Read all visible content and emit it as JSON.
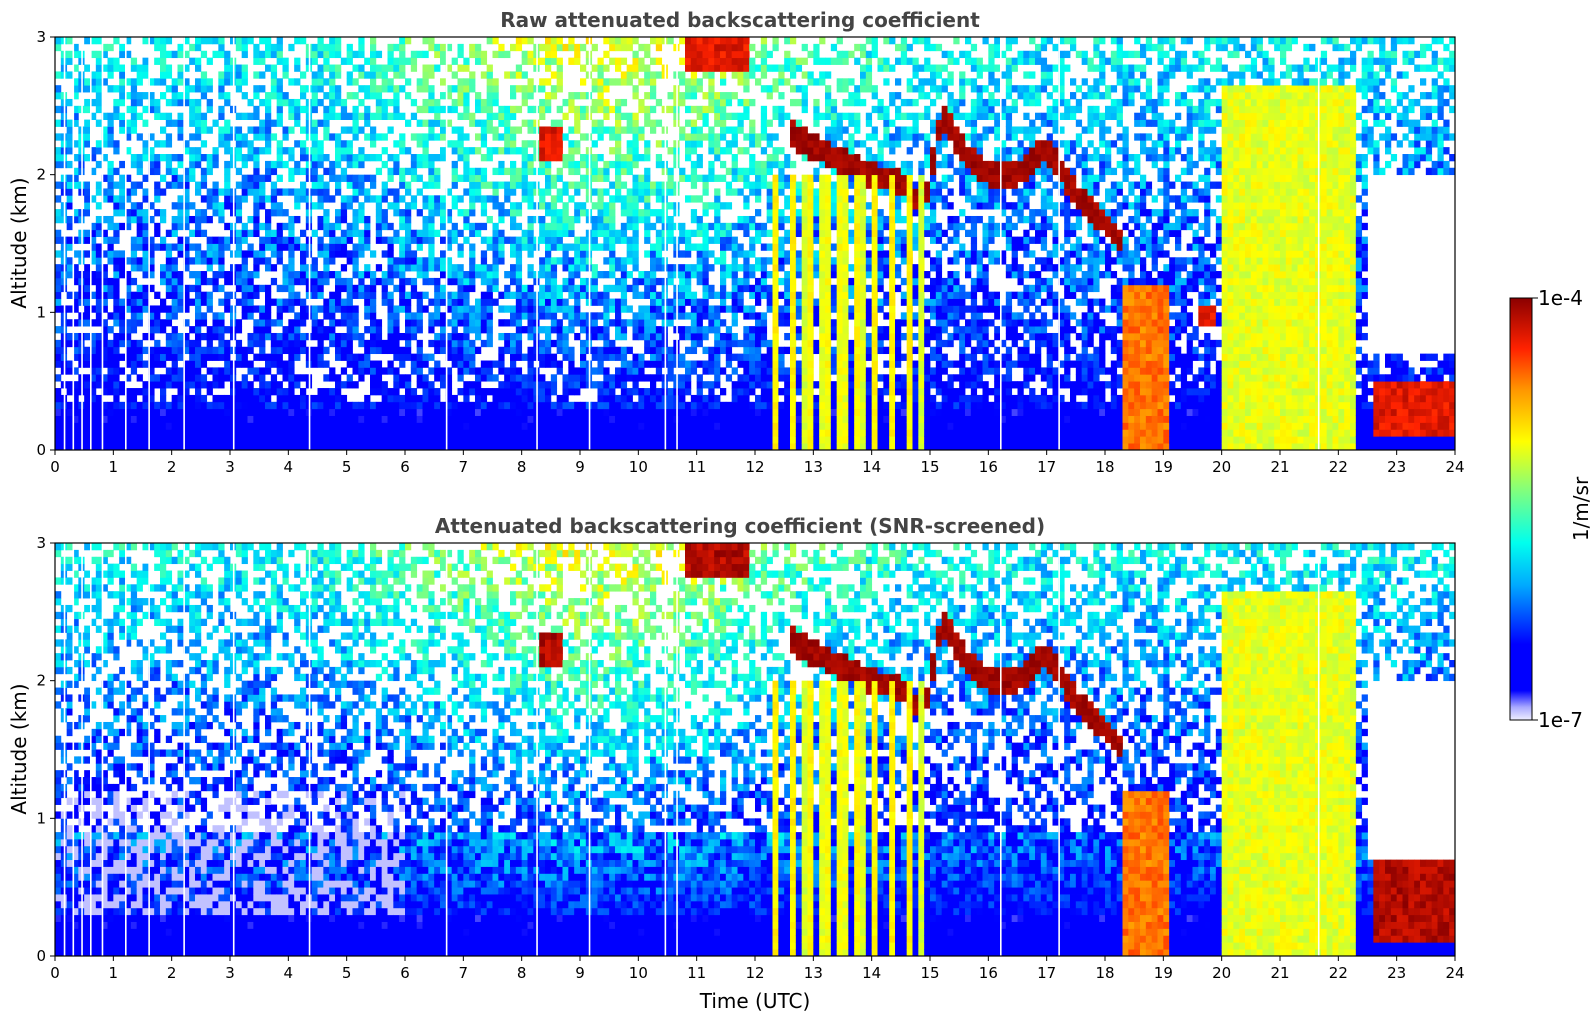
{
  "chart_data": [
    {
      "type": "heatmap",
      "title": "Raw attenuated backscattering coefficient",
      "xlabel": "",
      "ylabel": "Altitude (km)",
      "xlim": [
        0,
        24
      ],
      "ylim": [
        0,
        3
      ],
      "xticks": [
        "0",
        "1",
        "2",
        "3",
        "4",
        "5",
        "6",
        "7",
        "8",
        "9",
        "10",
        "11",
        "12",
        "13",
        "14",
        "15",
        "16",
        "17",
        "18",
        "19",
        "20",
        "21",
        "22",
        "23",
        "24"
      ],
      "yticks": [
        "0",
        "1",
        "2",
        "3"
      ],
      "colorscale": "jet (log)",
      "clim": [
        "1e-7",
        "1e-4"
      ],
      "features": [
        {
          "kind": "cloud_layer",
          "t": [
            8.3,
            8.7
          ],
          "alt": [
            2.1,
            2.35
          ],
          "level": 0.95
        },
        {
          "kind": "cloud_layer",
          "t": [
            10.8,
            11.9
          ],
          "alt": [
            2.75,
            3.0
          ],
          "level": 0.95
        },
        {
          "kind": "cloud_layer_profile",
          "t": [
            12.6,
            13.0,
            13.5,
            14.0,
            14.5,
            14.9,
            15.2,
            15.6,
            16.0,
            16.5,
            17.0,
            17.5,
            18.0,
            18.3
          ],
          "alt": [
            2.3,
            2.2,
            2.1,
            2.0,
            1.95,
            1.75,
            2.45,
            2.15,
            2.0,
            2.0,
            2.2,
            1.85,
            1.65,
            1.5
          ],
          "level": 1.0
        },
        {
          "kind": "precipitation",
          "t": [
            18.3,
            19.1
          ],
          "alt": [
            0.0,
            1.2
          ],
          "level": 0.85
        },
        {
          "kind": "cloud_layer",
          "t": [
            19.6,
            19.9
          ],
          "alt": [
            0.9,
            1.05
          ],
          "level": 0.95
        },
        {
          "kind": "fallstreak",
          "t": [
            12.3,
            14.9
          ],
          "alt": [
            0.0,
            2.0
          ],
          "level": 0.6
        },
        {
          "kind": "dense_aerosol",
          "t": [
            20.0,
            22.3
          ],
          "alt": [
            0.0,
            2.65
          ],
          "level": 0.68
        },
        {
          "kind": "low_cloud",
          "t": [
            22.6,
            24.0
          ],
          "alt": [
            0.1,
            0.5
          ],
          "level": 0.95
        }
      ]
    },
    {
      "type": "heatmap",
      "title": "Attenuated backscattering coefficient (SNR-screened)",
      "xlabel": "Time (UTC)",
      "ylabel": "Altitude (km)",
      "xlim": [
        0,
        24
      ],
      "ylim": [
        0,
        3
      ],
      "xticks": [
        "0",
        "1",
        "2",
        "3",
        "4",
        "5",
        "6",
        "7",
        "8",
        "9",
        "10",
        "11",
        "12",
        "13",
        "14",
        "15",
        "16",
        "17",
        "18",
        "19",
        "20",
        "21",
        "22",
        "23",
        "24"
      ],
      "yticks": [
        "0",
        "1",
        "2",
        "3"
      ],
      "colorscale": "jet (log)",
      "clim": [
        "1e-7",
        "1e-4"
      ],
      "features": [
        {
          "kind": "cloud_layer",
          "t": [
            8.3,
            8.7
          ],
          "alt": [
            2.1,
            2.35
          ],
          "level": 1.0
        },
        {
          "kind": "cloud_layer",
          "t": [
            10.8,
            11.9
          ],
          "alt": [
            2.75,
            3.0
          ],
          "level": 1.0
        },
        {
          "kind": "cloud_layer_profile",
          "t": [
            12.6,
            13.0,
            13.5,
            14.0,
            14.5,
            14.9,
            15.2,
            15.6,
            16.0,
            16.5,
            17.0,
            17.5,
            18.0,
            18.3
          ],
          "alt": [
            2.3,
            2.2,
            2.1,
            2.0,
            1.95,
            1.75,
            2.45,
            2.15,
            2.0,
            2.0,
            2.2,
            1.85,
            1.65,
            1.5
          ],
          "level": 1.0
        },
        {
          "kind": "precipitation",
          "t": [
            18.3,
            19.1
          ],
          "alt": [
            0.0,
            1.2
          ],
          "level": 0.85
        },
        {
          "kind": "fallstreak",
          "t": [
            12.3,
            14.9
          ],
          "alt": [
            0.0,
            2.0
          ],
          "level": 0.6
        },
        {
          "kind": "dense_aerosol",
          "t": [
            20.0,
            22.3
          ],
          "alt": [
            0.0,
            2.65
          ],
          "level": 0.68
        },
        {
          "kind": "low_cloud",
          "t": [
            22.6,
            24.0
          ],
          "alt": [
            0.1,
            0.7
          ],
          "level": 1.0
        }
      ]
    }
  ],
  "colorbar": {
    "label": "1/m/sr",
    "max_label": "1e-4",
    "min_label": "1e-7"
  }
}
